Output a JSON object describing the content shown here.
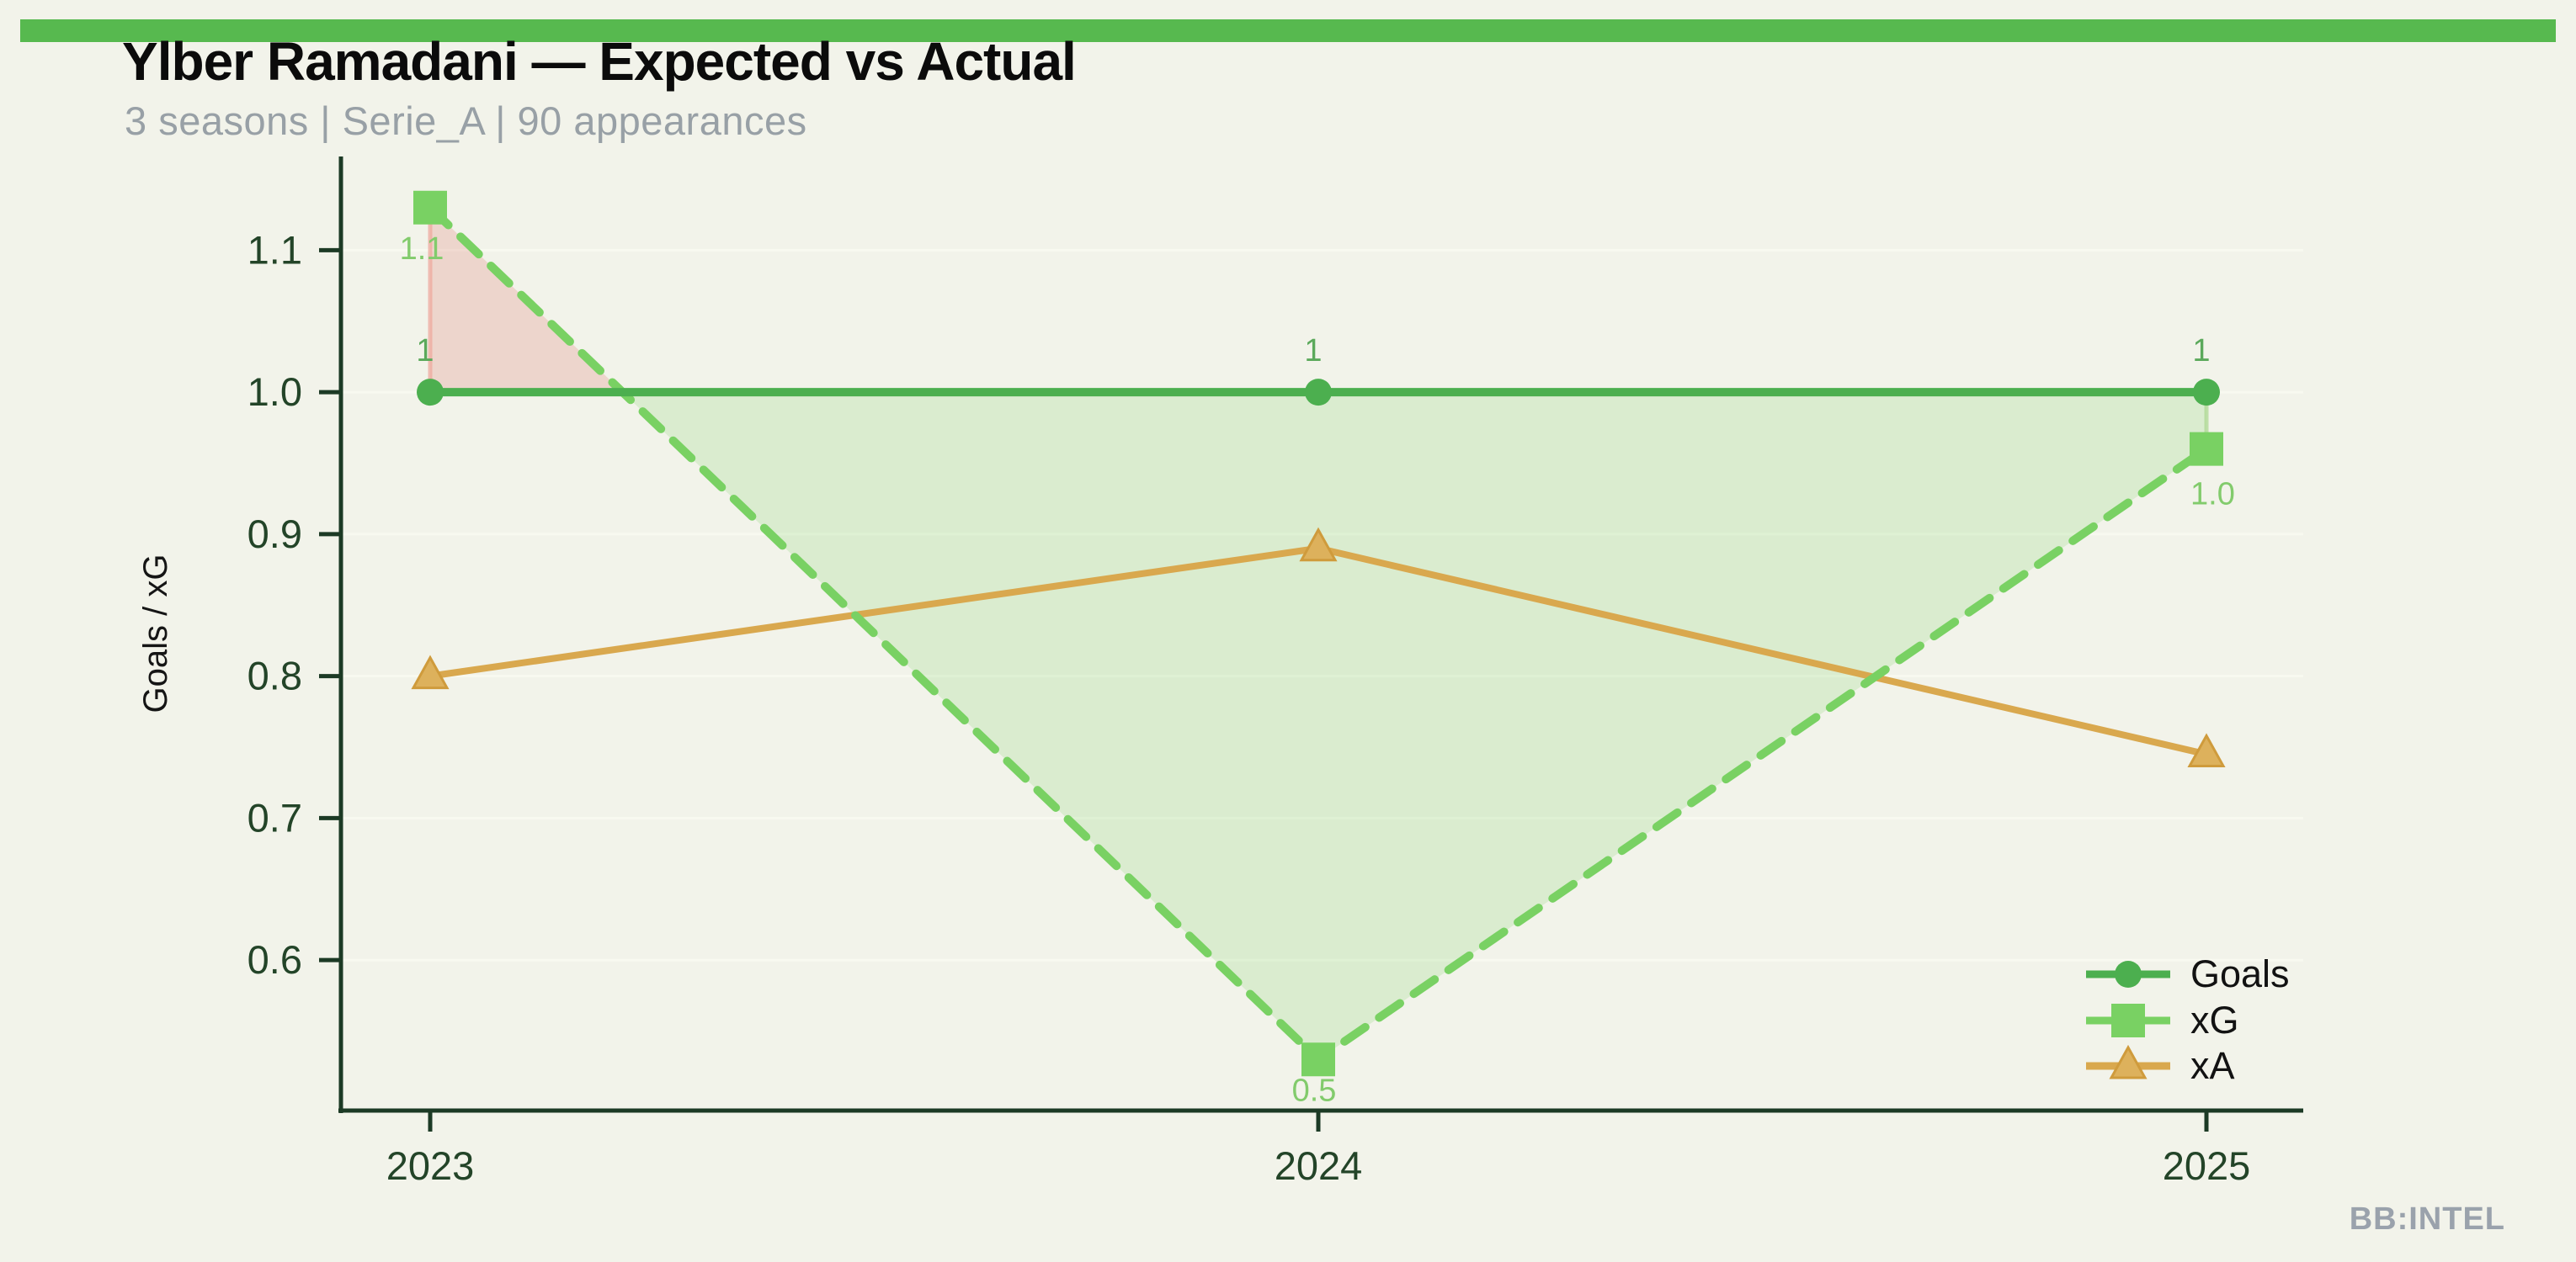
{
  "header": {
    "title": "Ylber Ramadani — Expected vs Actual",
    "subtitle": "3 seasons | Serie_A | 90 appearances"
  },
  "watermark": {
    "label": "BB:INTEL"
  },
  "theme": {
    "background": "#f2f3ea",
    "top_bar": "#57b94f",
    "axis": "#1c3a25",
    "tick_label": "#234428",
    "grid": "#f8f9f0",
    "subtitle_color": "#98a0a6",
    "watermark_color": "#9aa2ac",
    "ylabel_color": "#151515",
    "legend_text": "#121212"
  },
  "chart_data": {
    "type": "line",
    "title": "Ylber Ramadani — Expected vs Actual",
    "subtitle": "3 seasons | Serie_A | 90 appearances",
    "categories": [
      "2023",
      "2024",
      "2025"
    ],
    "series": [
      {
        "name": "Goals",
        "values": [
          1,
          1,
          1
        ],
        "point_labels": [
          "1",
          "1",
          "1"
        ],
        "color": "#4caf4f",
        "label_color": "#5ba95b",
        "marker": "circle",
        "line_style": "solid"
      },
      {
        "name": "xG",
        "values": [
          1.13,
          0.53,
          0.96
        ],
        "point_labels": [
          "1.1",
          "0.5",
          "1.0"
        ],
        "color": "#79d163",
        "label_color": "#82cb6c",
        "marker": "square",
        "line_style": "dashed"
      },
      {
        "name": "xA",
        "values": [
          0.8,
          0.89,
          0.745
        ],
        "point_labels": [],
        "color": "#d9a84e",
        "marker_fill": "#ddb15c",
        "marker_stroke": "#cf9b3c",
        "marker": "triangle",
        "line_style": "solid"
      }
    ],
    "xlabel": "",
    "ylabel": "Goals / xG",
    "ytick_labels": [
      "0.6",
      "0.7",
      "0.8",
      "0.9",
      "1.0",
      "1.1"
    ],
    "ytick_values": [
      0.6,
      0.7,
      0.8,
      0.9,
      1.0,
      1.1
    ],
    "ylim": [
      0.494,
      1.166
    ],
    "grid": true,
    "legend": {
      "entries": [
        "Goals",
        "xG",
        "xA"
      ],
      "position": "bottom-right"
    },
    "fills": {
      "baseline_series": "Goals",
      "compare_series": "xG",
      "above_color": "rgba(217,108,98,0.22)",
      "below_color": "rgba(126,208,99,0.20)",
      "above_edge": "rgba(238,168,158,0.75)",
      "below_edge": "rgba(172,216,146,0.75)"
    }
  }
}
